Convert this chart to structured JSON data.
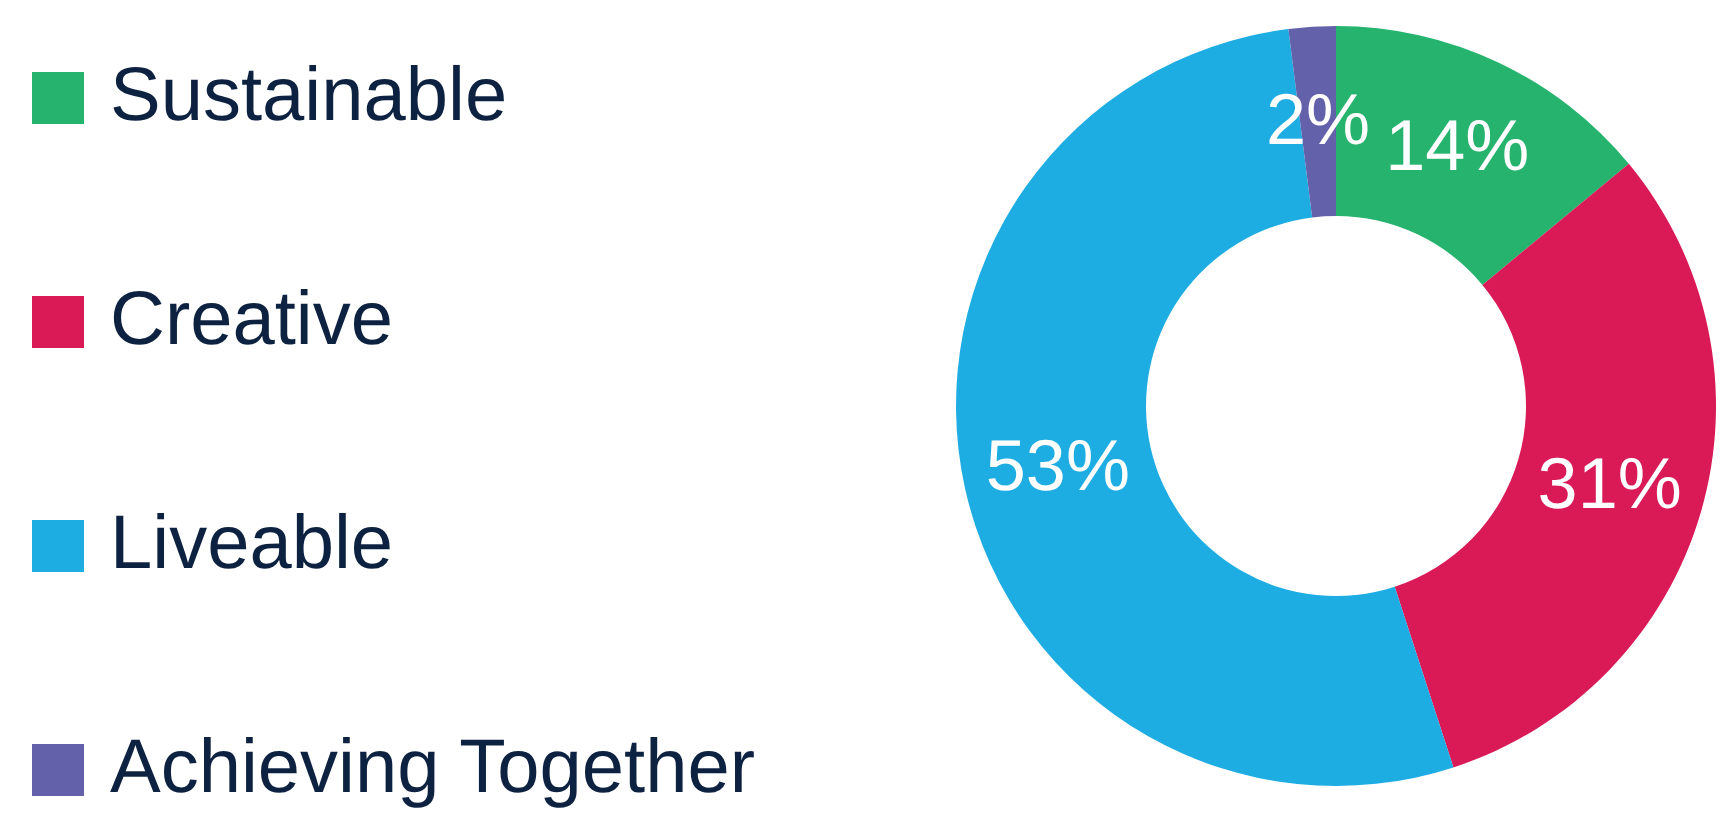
{
  "chart_data": {
    "type": "donut",
    "categories": [
      "Sustainable",
      "Creative",
      "Liveable",
      "Achieving Together"
    ],
    "values": [
      14,
      31,
      53,
      2
    ],
    "colors": [
      "#25b36e",
      "#d91a57",
      "#1eade3",
      "#6461ab"
    ],
    "value_labels": [
      "14%",
      "31%",
      "53%",
      "2%"
    ],
    "legend": "left"
  }
}
